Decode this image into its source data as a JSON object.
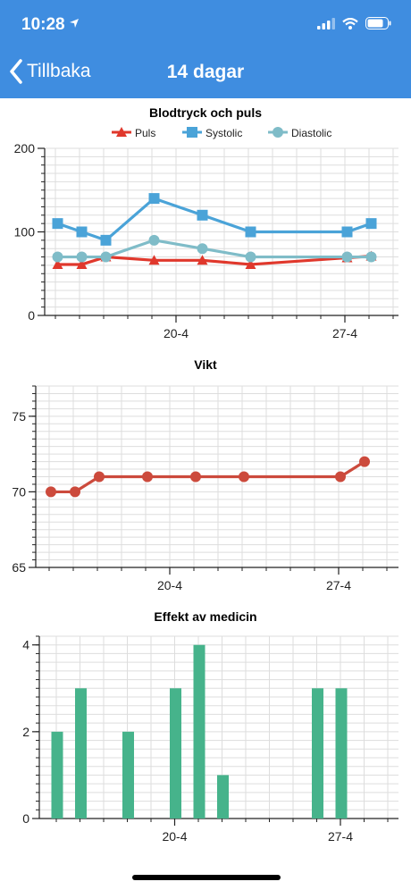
{
  "status": {
    "time": "10:28"
  },
  "nav": {
    "back_label": "Tillbaka",
    "title": "14 dagar"
  },
  "chart_data": [
    {
      "type": "line",
      "title": "Blodtryck och puls",
      "legend_position": "top",
      "x_tick_labels": [
        "20-4",
        "27-4"
      ],
      "ylim": [
        0,
        200
      ],
      "y_ticks": [
        0,
        100,
        200
      ],
      "grid": true,
      "series": [
        {
          "name": "Puls",
          "color": "#e0382c",
          "marker": "triangle",
          "x": [
            0,
            1,
            2,
            4,
            6,
            8,
            12,
            13
          ],
          "y": [
            61,
            61,
            70,
            66,
            66,
            61,
            69,
            71
          ]
        },
        {
          "name": "Systolic",
          "color": "#4aa3d8",
          "marker": "square",
          "x": [
            0,
            1,
            2,
            4,
            6,
            8,
            12,
            13
          ],
          "y": [
            110,
            100,
            90,
            140,
            120,
            100,
            100,
            110
          ]
        },
        {
          "name": "Diastolic",
          "color": "#7fbcc8",
          "marker": "circle",
          "x": [
            0,
            1,
            2,
            4,
            6,
            8,
            12,
            13
          ],
          "y": [
            70,
            70,
            70,
            90,
            80,
            70,
            70,
            70
          ]
        }
      ]
    },
    {
      "type": "line",
      "title": "Vikt",
      "x_tick_labels": [
        "20-4",
        "27-4"
      ],
      "ylim": [
        65,
        77
      ],
      "y_ticks": [
        65,
        70,
        75
      ],
      "grid": true,
      "series": [
        {
          "name": "",
          "color": "#cc4a3c",
          "marker": "circle",
          "x": [
            0,
            1,
            2,
            4,
            6,
            8,
            12,
            13
          ],
          "y": [
            70,
            70,
            71,
            71,
            71,
            71,
            71,
            72
          ]
        }
      ]
    },
    {
      "type": "bar",
      "title": "Effekt av medicin",
      "x_tick_labels": [
        "20-4",
        "27-4"
      ],
      "ylim": [
        0,
        4.2
      ],
      "y_ticks": [
        0,
        2,
        4
      ],
      "grid": true,
      "series": [
        {
          "name": "",
          "color": "#46b38b",
          "x": [
            0,
            1,
            3,
            5,
            6,
            7,
            11,
            12
          ],
          "y": [
            2,
            3,
            2,
            3,
            4,
            1,
            3,
            3
          ]
        }
      ]
    }
  ]
}
